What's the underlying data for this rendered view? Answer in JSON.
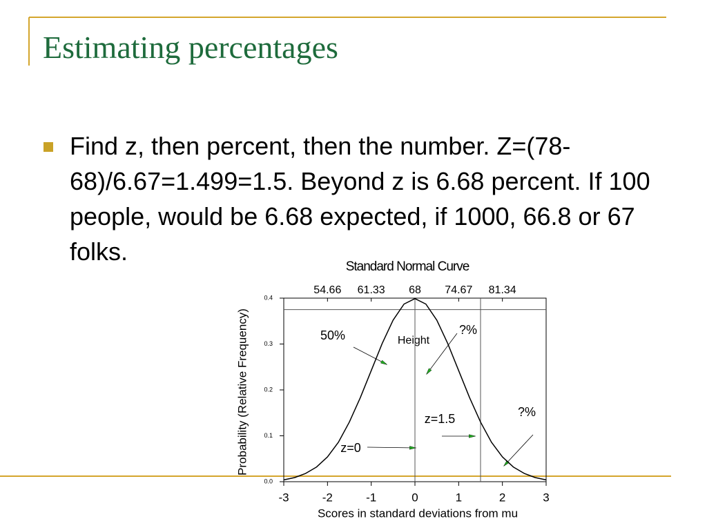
{
  "slide": {
    "title": "Estimating percentages",
    "bullets": [
      "Find z, then percent, then the number. Z=(78-68)/6.67=1.499=1.5.  Beyond z is 6.68 percent.  If 100 people, would be 6.68 expected, if 1000, 66.8 or 67 folks."
    ]
  },
  "chart_data": {
    "type": "line",
    "title": "Standard Normal Curve",
    "x_label": "Scores in standard deviations from mu",
    "y_label": "Probability (Relative Frequency)",
    "x": [
      -3,
      -2.75,
      -2.5,
      -2.25,
      -2,
      -1.75,
      -1.5,
      -1.25,
      -1,
      -0.75,
      -0.5,
      -0.25,
      0,
      0.25,
      0.5,
      0.75,
      1,
      1.25,
      1.5,
      1.75,
      2,
      2.25,
      2.5,
      2.75,
      3
    ],
    "values": [
      0.004,
      0.009,
      0.018,
      0.032,
      0.054,
      0.086,
      0.13,
      0.183,
      0.242,
      0.301,
      0.352,
      0.387,
      0.399,
      0.387,
      0.352,
      0.301,
      0.242,
      0.183,
      0.13,
      0.086,
      0.054,
      0.032,
      0.018,
      0.009,
      0.004
    ],
    "color": "#000000",
    "xlim": [
      -3,
      3
    ],
    "ylim": [
      0,
      0.4
    ],
    "xticks": [
      -3,
      -2,
      -1,
      0,
      1,
      2,
      3
    ],
    "yticks": [
      {
        "value": 0,
        "label": "0.0"
      },
      0.1,
      0.2,
      0.3,
      0.4
    ],
    "top_xticks": [
      {
        "value": -2,
        "label": "54.66"
      },
      {
        "value": -1,
        "label": "61.33"
      },
      {
        "value": 0,
        "label": "68"
      },
      {
        "value": 1,
        "label": "74.67"
      },
      {
        "value": 2,
        "label": "81.34"
      }
    ],
    "reference_lines": {
      "x": [
        0,
        1.5
      ],
      "y": [
        0.375
      ]
    },
    "annotations": [
      "50%",
      "Height",
      "?%",
      "?%",
      "z=1.5",
      "z=0"
    ]
  }
}
